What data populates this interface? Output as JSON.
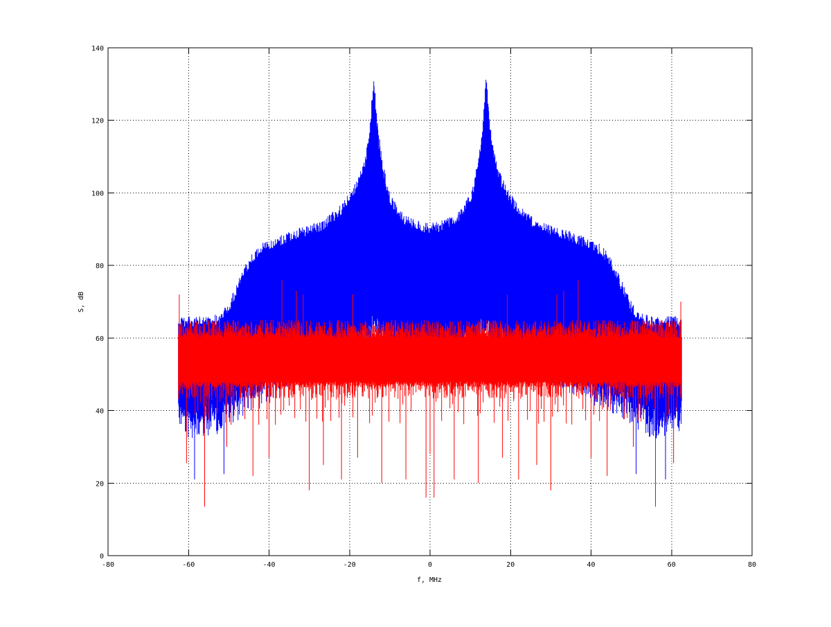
{
  "chart_data": {
    "type": "line",
    "title": "",
    "xlabel": "f, MHz",
    "ylabel": "S, dB",
    "xlim": [
      -80,
      80
    ],
    "ylim": [
      0,
      140
    ],
    "xticks": [
      -80,
      -60,
      -40,
      -20,
      0,
      20,
      40,
      60,
      80
    ],
    "yticks": [
      0,
      20,
      40,
      60,
      80,
      100,
      120,
      140
    ],
    "grid": true,
    "grid_style": "dotted",
    "box": true,
    "series": [
      {
        "color": "#0000ff",
        "x_range": [
          -62.5,
          62.5
        ],
        "envelope": {
          "x": [
            -62.5,
            -60,
            -55,
            -52,
            -50,
            -48,
            -46,
            -44,
            -42,
            -40,
            -38,
            -36,
            -34,
            -32,
            -30,
            -28,
            -26,
            -24,
            -22,
            -20,
            -18,
            -17,
            -16,
            -15,
            -14.5,
            -14,
            -13.5,
            -13,
            -12,
            -11,
            -10,
            -8,
            -6,
            -4,
            -2,
            0,
            2,
            4,
            6,
            8,
            10,
            11,
            12,
            13,
            13.5,
            14,
            14.5,
            15,
            16,
            17,
            18,
            20,
            22,
            24,
            26,
            28,
            30,
            32,
            34,
            36,
            38,
            40,
            42,
            44,
            46,
            48,
            50,
            52,
            55,
            60,
            62.5
          ],
          "top": [
            66,
            66,
            66,
            67,
            70,
            75,
            80,
            84,
            86,
            87,
            88,
            89,
            90,
            90.5,
            91,
            92,
            93,
            95,
            97,
            100,
            104,
            107,
            111,
            118,
            126,
            133,
            126,
            118,
            110,
            104,
            100,
            96,
            94,
            93,
            92,
            92,
            92,
            93,
            94,
            96,
            100,
            104,
            110,
            118,
            126,
            133,
            126,
            118,
            111,
            107,
            104,
            100,
            97,
            95,
            93,
            92,
            91,
            90.5,
            90,
            89,
            88,
            87,
            86,
            84,
            80,
            75,
            70,
            67,
            66,
            66,
            66
          ],
          "bottom": [
            45,
            42,
            42,
            44,
            46,
            47,
            48,
            49,
            50,
            52,
            53,
            54,
            55,
            56,
            57,
            58,
            59,
            60,
            61,
            62,
            63,
            64,
            65,
            66,
            67,
            67,
            67,
            66,
            65,
            64,
            63,
            62,
            61,
            60,
            60,
            60,
            60,
            60,
            61,
            62,
            63,
            64,
            65,
            66,
            67,
            67,
            67,
            66,
            65,
            64,
            63,
            62,
            61,
            60,
            59,
            58,
            57,
            56,
            55,
            54,
            53,
            52,
            50,
            49,
            48,
            47,
            46,
            44,
            42,
            42,
            45
          ]
        },
        "spikes_down": [
          {
            "x": -58.5,
            "y": 21
          },
          {
            "x": -51.2,
            "y": 22.5
          },
          {
            "x": -56.3,
            "y": 33
          },
          {
            "x": 51.2,
            "y": 22.5
          },
          {
            "x": 58.5,
            "y": 21
          },
          {
            "x": 56.3,
            "y": 33
          }
        ],
        "spikes_up": [
          {
            "x": -16,
            "y": 75
          },
          {
            "x": -12,
            "y": 78
          },
          {
            "x": -10,
            "y": 70
          },
          {
            "x": -8,
            "y": 68
          },
          {
            "x": 8,
            "y": 68
          },
          {
            "x": 10,
            "y": 70
          },
          {
            "x": 12,
            "y": 78
          },
          {
            "x": 16,
            "y": 75
          }
        ]
      },
      {
        "color": "#ff0000",
        "x_range": [
          -62.5,
          62.5
        ],
        "envelope": {
          "top": 65,
          "bottom": 44,
          "dense_top": 60,
          "dense_bottom": 48
        },
        "spikes_up": [
          {
            "x": -62.3,
            "y": 72
          },
          {
            "x": -36.8,
            "y": 76
          },
          {
            "x": -33.2,
            "y": 73
          },
          {
            "x": -31.5,
            "y": 72
          },
          {
            "x": -19.2,
            "y": 72
          },
          {
            "x": 19.2,
            "y": 72
          },
          {
            "x": 31.5,
            "y": 72
          },
          {
            "x": 33.2,
            "y": 73
          },
          {
            "x": 36.8,
            "y": 76
          },
          {
            "x": 62.3,
            "y": 70
          }
        ],
        "spikes_down": [
          {
            "x": -60.5,
            "y": 25.5
          },
          {
            "x": -56.0,
            "y": 13.5
          },
          {
            "x": -50.5,
            "y": 30
          },
          {
            "x": -44.0,
            "y": 22
          },
          {
            "x": -40.0,
            "y": 27
          },
          {
            "x": -30.0,
            "y": 18
          },
          {
            "x": -26.5,
            "y": 25
          },
          {
            "x": -22.0,
            "y": 21
          },
          {
            "x": -18.0,
            "y": 27
          },
          {
            "x": -12.0,
            "y": 20
          },
          {
            "x": -6.0,
            "y": 21
          },
          {
            "x": -1.0,
            "y": 16
          },
          {
            "x": 0.0,
            "y": 28
          },
          {
            "x": 1.0,
            "y": 16
          },
          {
            "x": 6.0,
            "y": 21
          },
          {
            "x": 12.0,
            "y": 20
          },
          {
            "x": 18.0,
            "y": 27
          },
          {
            "x": 22.0,
            "y": 21
          },
          {
            "x": 26.5,
            "y": 25
          },
          {
            "x": 30.0,
            "y": 18
          },
          {
            "x": 40.0,
            "y": 27
          },
          {
            "x": 44.0,
            "y": 22
          },
          {
            "x": 50.5,
            "y": 30
          },
          {
            "x": 56.0,
            "y": 13.5
          },
          {
            "x": 60.5,
            "y": 25.5
          }
        ]
      }
    ]
  }
}
